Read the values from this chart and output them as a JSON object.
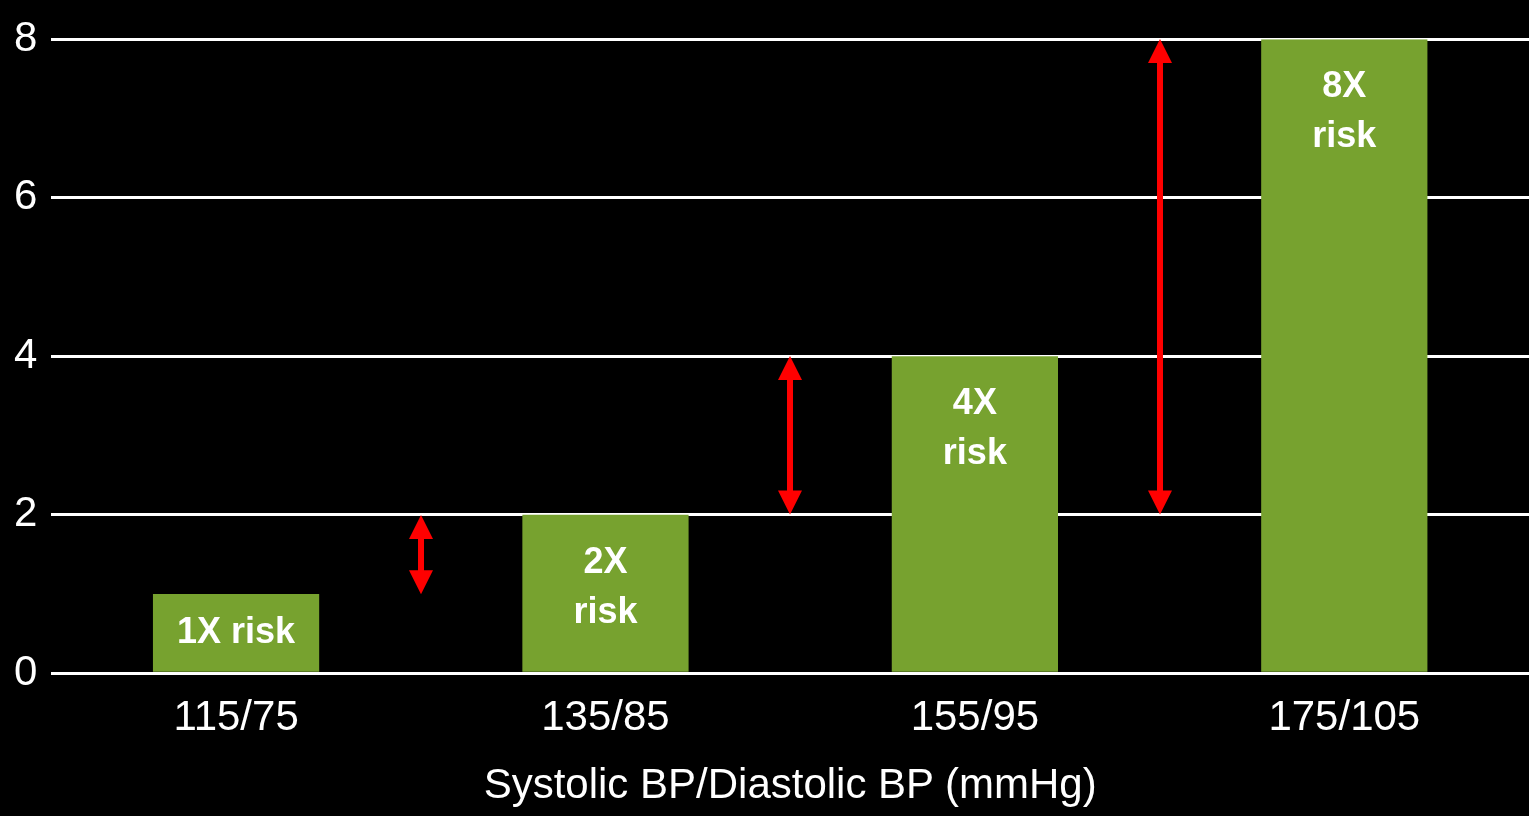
{
  "chart_data": {
    "type": "bar",
    "xlabel": "Systolic BP/Diastolic BP (mmHg)",
    "categories": [
      "115/75",
      "135/85",
      "155/95",
      "175/105"
    ],
    "values": [
      1,
      2,
      4,
      8
    ],
    "color": "#77a22f",
    "value_labels": [
      "1X risk",
      "2X risk",
      "4X risk",
      "8X risk"
    ],
    "ylim": [
      0,
      8
    ],
    "yticks": [
      0,
      2,
      4,
      6,
      8
    ],
    "grid": "y",
    "legend": false
  }
}
